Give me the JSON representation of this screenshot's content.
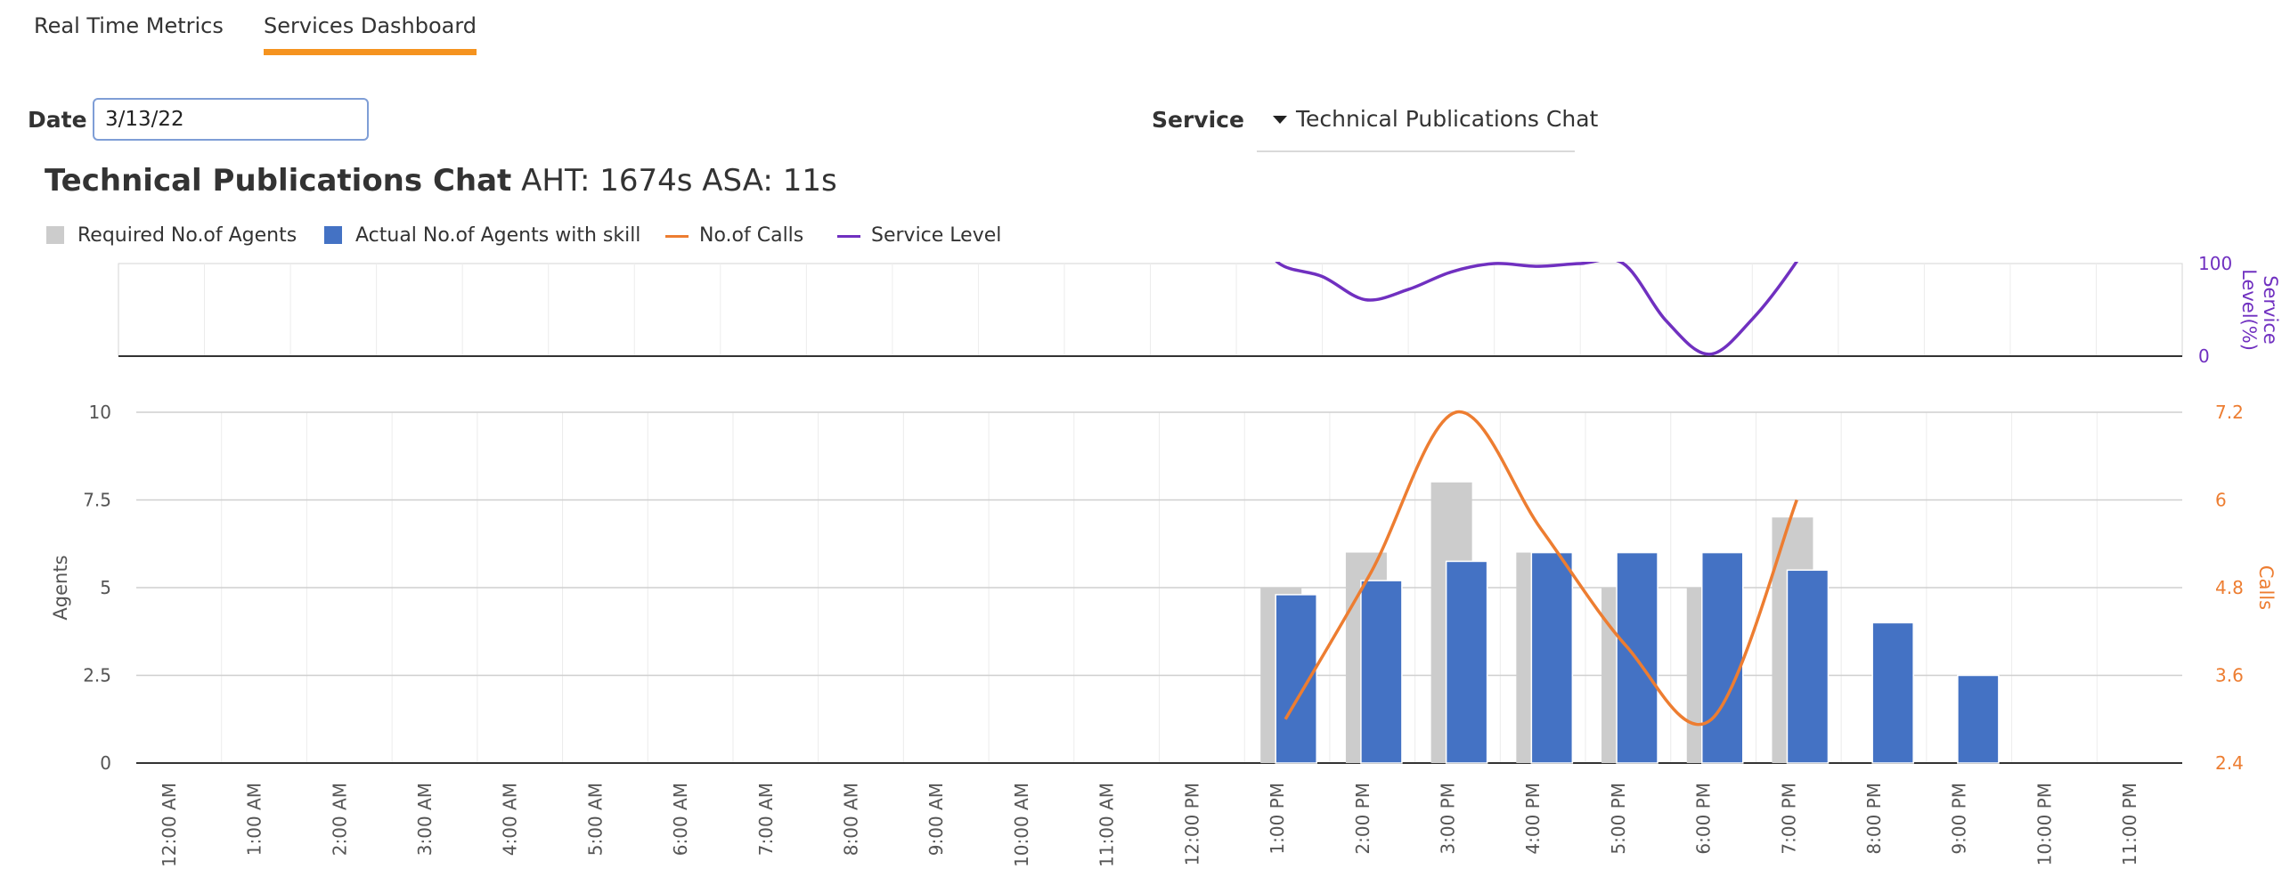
{
  "tabs": [
    {
      "label": "Real Time Metrics",
      "active": false
    },
    {
      "label": "Services Dashboard",
      "active": true
    }
  ],
  "filters": {
    "date_label": "Date",
    "date_value": "3/13/22",
    "service_label": "Service",
    "service_value": "Technical Publications Chat"
  },
  "header": {
    "service_name": "Technical Publications Chat",
    "metrics": "AHT: 1674s ASA: 11s"
  },
  "colors": {
    "tab_accent": "#f5931f",
    "required": "#cccccc",
    "actual": "#4472c4",
    "calls": "#ed7d31",
    "service_level": "#7030c0"
  },
  "chart_data": [
    {
      "type": "line",
      "series": [
        {
          "name": "Service Level",
          "x": [
            "1:00 PM",
            "1:30 PM",
            "2:00 PM",
            "2:30 PM",
            "3:00 PM",
            "3:30 PM",
            "4:00 PM",
            "4:30 PM",
            "5:00 PM",
            "5:30 PM",
            "6:00 PM",
            "6:30 PM",
            "7:00 PM"
          ],
          "values": [
            100,
            86,
            61,
            72,
            91,
            100,
            97,
            100,
            100,
            38,
            2,
            40,
            100
          ]
        }
      ],
      "ylabel": "Service Level(%)",
      "ylim": [
        0,
        100
      ],
      "y_ticks": [
        "0",
        "100"
      ],
      "y_axis_side": "right",
      "grid": true
    },
    {
      "type": "bar",
      "categories": [
        "12:00 AM",
        "1:00 AM",
        "2:00 AM",
        "3:00 AM",
        "4:00 AM",
        "5:00 AM",
        "6:00 AM",
        "7:00 AM",
        "8:00 AM",
        "9:00 AM",
        "10:00 AM",
        "11:00 AM",
        "12:00 PM",
        "1:00 PM",
        "2:00 PM",
        "3:00 PM",
        "4:00 PM",
        "5:00 PM",
        "6:00 PM",
        "7:00 PM",
        "8:00 PM",
        "9:00 PM",
        "10:00 PM",
        "11:00 PM"
      ],
      "series": [
        {
          "name": "Required No.of Agents",
          "values": [
            0,
            0,
            0,
            0,
            0,
            0,
            0,
            0,
            0,
            0,
            0,
            0,
            0,
            5,
            6,
            8,
            6,
            5,
            5,
            7,
            0,
            0,
            0,
            0
          ]
        },
        {
          "name": "Actual No.of Agents with skill",
          "values": [
            0,
            0,
            0,
            0,
            0,
            0,
            0,
            0,
            0,
            0,
            0,
            0,
            0,
            4.8,
            5.2,
            5.75,
            6,
            6,
            6,
            5.5,
            4,
            2.5,
            0,
            0
          ]
        },
        {
          "name": "No.of Calls",
          "type": "line",
          "y_axis": "right",
          "x": [
            "1:00 PM",
            "2:00 PM",
            "3:00 PM",
            "4:00 PM",
            "5:00 PM",
            "6:00 PM",
            "7:00 PM"
          ],
          "values": [
            3.0,
            5.0,
            7.2,
            5.6,
            4.0,
            3.0,
            6.0
          ]
        }
      ],
      "ylabel": "Agents",
      "ylim": [
        0,
        10
      ],
      "y_ticks": [
        "0",
        "2.5",
        "5",
        "7.5",
        "10"
      ],
      "y2label": "Calls",
      "y2lim": [
        2.4,
        7.2
      ],
      "y2_ticks": [
        "2.4",
        "3.6",
        "4.8",
        "6",
        "7.2"
      ],
      "grid": true,
      "legend": "top-left"
    }
  ]
}
